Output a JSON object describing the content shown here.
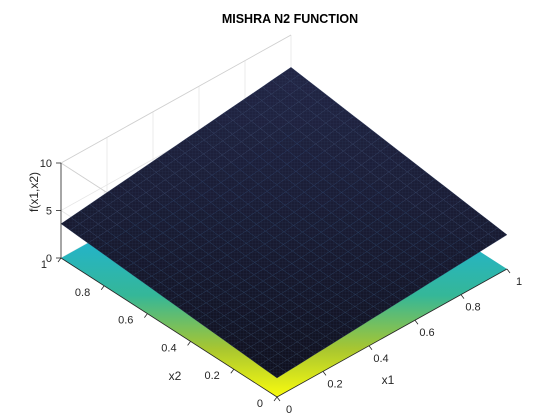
{
  "chart_data": {
    "type": "surface",
    "title": "MISHRA N2 FUNCTION",
    "xlabel": "x1",
    "ylabel": "x2",
    "zlabel": "f(x1,x2)",
    "xlim": [
      0,
      1
    ],
    "ylim": [
      0,
      1
    ],
    "zlim": [
      0,
      10
    ],
    "xticks": [
      "0",
      "0.2",
      "0.4",
      "0.6",
      "0.8",
      "1"
    ],
    "yticks": [
      "0",
      "0.2",
      "0.4",
      "0.6",
      "0.8",
      "1"
    ],
    "zticks": [
      "0",
      "5",
      "10"
    ],
    "surface_corners": [
      {
        "x1": 0,
        "x2": 0,
        "f": 2
      },
      {
        "x1": 1,
        "x2": 0,
        "f": 3.6
      },
      {
        "x1": 0,
        "x2": 1,
        "f": 3.6
      },
      {
        "x1": 1,
        "x2": 1,
        "f": 6.6
      }
    ],
    "colormap": "parula",
    "surface_color": "#1a1a33",
    "contour_projection": true,
    "grid": true
  }
}
